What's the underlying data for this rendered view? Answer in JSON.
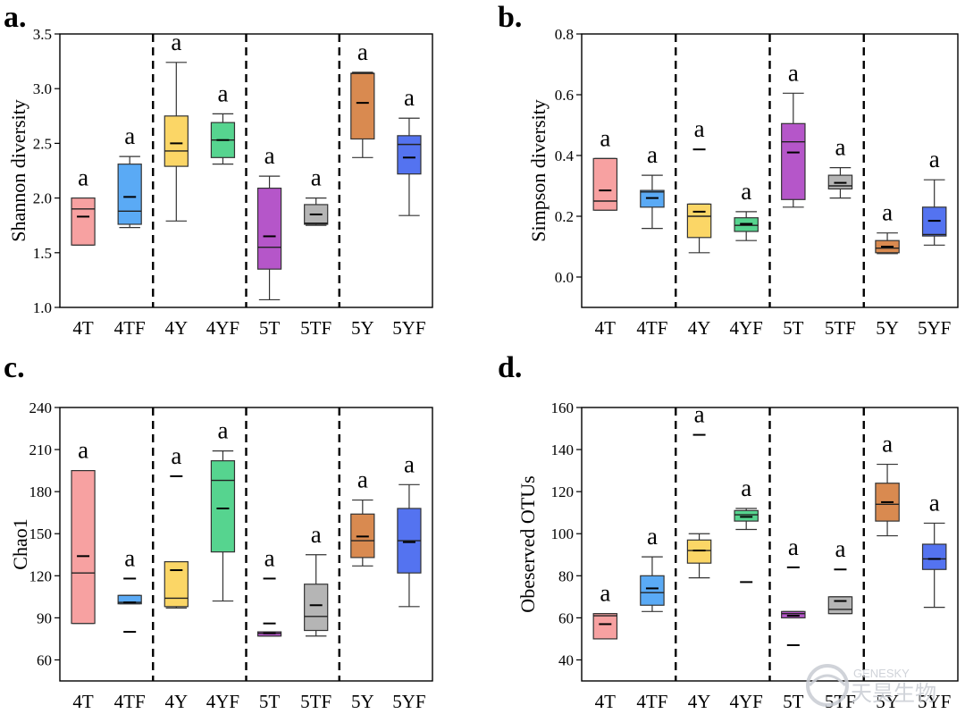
{
  "colors": {
    "4T": "#f7a1a1",
    "4TF": "#5aaaf5",
    "4Y": "#fbd666",
    "4YF": "#56d48f",
    "5T": "#b556c9",
    "5TF": "#b5b5b5",
    "5Y": "#d98a50",
    "5YF": "#5473f0"
  },
  "watermark": {
    "brand": "GENESKY",
    "cn": "天昊生物"
  },
  "chart_data": [
    {
      "panel": "a.",
      "type": "box",
      "ylabel": "Shannon diversity",
      "ylim": [
        1.0,
        3.5
      ],
      "yticks": [
        "1.0",
        "1.5",
        "2.0",
        "2.5",
        "3.0",
        "3.5"
      ],
      "categories": [
        "4T",
        "4TF",
        "4Y",
        "4YF",
        "5T",
        "5TF",
        "5Y",
        "5YF"
      ],
      "letters": [
        "a",
        "a",
        "a",
        "a",
        "a",
        "a",
        "a",
        "a"
      ],
      "group_separators_after": [
        2,
        4,
        6
      ],
      "boxes": [
        {
          "whislo": 1.57,
          "q1": 1.57,
          "med": 1.9,
          "q3": 2.0,
          "whishi": 2.0,
          "mean": 1.83,
          "fliers": []
        },
        {
          "whislo": 1.73,
          "q1": 1.76,
          "med": 1.88,
          "q3": 2.31,
          "whishi": 2.38,
          "mean": 2.01,
          "fliers": []
        },
        {
          "whislo": 1.79,
          "q1": 2.29,
          "med": 2.43,
          "q3": 2.75,
          "whishi": 3.24,
          "mean": 2.5,
          "fliers": []
        },
        {
          "whislo": 2.31,
          "q1": 2.37,
          "med": 2.53,
          "q3": 2.69,
          "whishi": 2.77,
          "mean": 2.53,
          "fliers": []
        },
        {
          "whislo": 1.07,
          "q1": 1.35,
          "med": 1.55,
          "q3": 2.09,
          "whishi": 2.2,
          "mean": 1.65,
          "fliers": []
        },
        {
          "whislo": 1.75,
          "q1": 1.76,
          "med": 1.77,
          "q3": 1.94,
          "whishi": 2.0,
          "mean": 1.85,
          "fliers": []
        },
        {
          "whislo": 2.37,
          "q1": 2.54,
          "med": 3.14,
          "q3": 3.14,
          "whishi": 3.15,
          "mean": 2.87,
          "fliers": []
        },
        {
          "whislo": 1.84,
          "q1": 2.22,
          "med": 2.49,
          "q3": 2.57,
          "whishi": 2.73,
          "mean": 2.37,
          "fliers": []
        }
      ]
    },
    {
      "panel": "b.",
      "type": "box",
      "ylabel": "Simpson diversity",
      "ylim": [
        -0.1,
        0.8
      ],
      "yticks": [
        "0.0",
        "0.2",
        "0.4",
        "0.6",
        "0.8"
      ],
      "categories": [
        "4T",
        "4TF",
        "4Y",
        "4YF",
        "5T",
        "5TF",
        "5Y",
        "5YF"
      ],
      "letters": [
        "a",
        "a",
        "a",
        "a",
        "a",
        "a",
        "a",
        "a"
      ],
      "group_separators_after": [
        2,
        4,
        6
      ],
      "boxes": [
        {
          "whislo": 0.22,
          "q1": 0.22,
          "med": 0.25,
          "q3": 0.39,
          "whishi": 0.39,
          "mean": 0.285,
          "fliers": []
        },
        {
          "whislo": 0.16,
          "q1": 0.23,
          "med": 0.28,
          "q3": 0.285,
          "whishi": 0.335,
          "mean": 0.26,
          "fliers": []
        },
        {
          "whislo": 0.08,
          "q1": 0.13,
          "med": 0.2,
          "q3": 0.24,
          "whishi": 0.24,
          "mean": 0.215,
          "fliers": [
            0.42
          ]
        },
        {
          "whislo": 0.12,
          "q1": 0.15,
          "med": 0.17,
          "q3": 0.195,
          "whishi": 0.215,
          "mean": 0.175,
          "fliers": []
        },
        {
          "whislo": 0.23,
          "q1": 0.255,
          "med": 0.445,
          "q3": 0.505,
          "whishi": 0.605,
          "mean": 0.41,
          "fliers": []
        },
        {
          "whislo": 0.26,
          "q1": 0.29,
          "med": 0.3,
          "q3": 0.335,
          "whishi": 0.36,
          "mean": 0.31,
          "fliers": []
        },
        {
          "whislo": 0.077,
          "q1": 0.08,
          "med": 0.095,
          "q3": 0.12,
          "whishi": 0.145,
          "mean": 0.1,
          "fliers": []
        },
        {
          "whislo": 0.105,
          "q1": 0.135,
          "med": 0.14,
          "q3": 0.23,
          "whishi": 0.32,
          "mean": 0.185,
          "fliers": []
        }
      ]
    },
    {
      "panel": "c.",
      "type": "box",
      "ylabel": "Chao1",
      "ylim": [
        45,
        240
      ],
      "yticks": [
        "60",
        "90",
        "120",
        "150",
        "180",
        "210",
        "240"
      ],
      "categories": [
        "4T",
        "4TF",
        "4Y",
        "4YF",
        "5T",
        "5TF",
        "5Y",
        "5YF"
      ],
      "letters": [
        "a",
        "a",
        "a",
        "a",
        "a",
        "a",
        "a",
        "a"
      ],
      "group_separators_after": [
        2,
        4,
        6
      ],
      "boxes": [
        {
          "whislo": 86,
          "q1": 86,
          "med": 122,
          "q3": 195,
          "whishi": 195,
          "mean": 134,
          "fliers": []
        },
        {
          "whislo": 100,
          "q1": 100,
          "med": 101,
          "q3": 106,
          "whishi": 106,
          "mean": 101,
          "fliers": [
            80,
            118
          ]
        },
        {
          "whislo": 97,
          "q1": 98,
          "med": 104,
          "q3": 130,
          "whishi": 130,
          "mean": 124,
          "fliers": [
            191
          ]
        },
        {
          "whislo": 102,
          "q1": 137,
          "med": 188,
          "q3": 202,
          "whishi": 209,
          "mean": 168,
          "fliers": []
        },
        {
          "whislo": 77,
          "q1": 77,
          "med": 79,
          "q3": 80,
          "whishi": 80,
          "mean": 79,
          "fliers": [
            86,
            118
          ]
        },
        {
          "whislo": 77,
          "q1": 81,
          "med": 91,
          "q3": 114,
          "whishi": 135,
          "mean": 99,
          "fliers": []
        },
        {
          "whislo": 127,
          "q1": 133,
          "med": 145,
          "q3": 164,
          "whishi": 174,
          "mean": 148,
          "fliers": []
        },
        {
          "whislo": 98,
          "q1": 122,
          "med": 145,
          "q3": 168,
          "whishi": 185,
          "mean": 144,
          "fliers": []
        }
      ]
    },
    {
      "panel": "d.",
      "type": "box",
      "ylabel": "Obeserved OTUs",
      "ylim": [
        30,
        160
      ],
      "yticks": [
        "40",
        "60",
        "80",
        "100",
        "120",
        "140",
        "160"
      ],
      "categories": [
        "4T",
        "4TF",
        "4Y",
        "4YF",
        "5T",
        "5TF",
        "5Y",
        "5YF"
      ],
      "letters": [
        "a",
        "a",
        "a",
        "a",
        "a",
        "a",
        "a",
        "a"
      ],
      "group_separators_after": [
        2,
        4,
        6
      ],
      "boxes": [
        {
          "whislo": 50,
          "q1": 50,
          "med": 61,
          "q3": 62,
          "whishi": 62,
          "mean": 57,
          "fliers": []
        },
        {
          "whislo": 63,
          "q1": 66,
          "med": 72,
          "q3": 80,
          "whishi": 89,
          "mean": 74,
          "fliers": []
        },
        {
          "whislo": 79,
          "q1": 86,
          "med": 92,
          "q3": 97,
          "whishi": 100,
          "mean": 92,
          "fliers": [
            147
          ]
        },
        {
          "whislo": 102,
          "q1": 106,
          "med": 109,
          "q3": 111,
          "whishi": 112,
          "mean": 108,
          "fliers": [
            77
          ]
        },
        {
          "whislo": 60,
          "q1": 60,
          "med": 62,
          "q3": 63,
          "whishi": 63,
          "mean": 61,
          "fliers": [
            47,
            84
          ]
        },
        {
          "whislo": 62,
          "q1": 62,
          "med": 64,
          "q3": 70,
          "whishi": 70,
          "mean": 68,
          "fliers": [
            83
          ]
        },
        {
          "whislo": 99,
          "q1": 106,
          "med": 114,
          "q3": 124,
          "whishi": 133,
          "mean": 115,
          "fliers": []
        },
        {
          "whislo": 65,
          "q1": 83,
          "med": 88,
          "q3": 95,
          "whishi": 105,
          "mean": 88,
          "fliers": []
        }
      ]
    }
  ]
}
